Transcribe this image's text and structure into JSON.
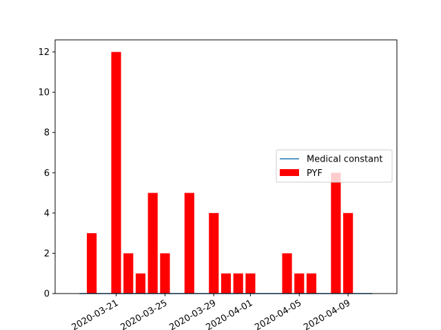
{
  "chart_data": {
    "type": "bar",
    "title": "",
    "xlabel": "",
    "ylabel": "",
    "x_axis_kind": "date",
    "xlim": [
      "2020-03-16",
      "2020-04-13"
    ],
    "ylim": [
      0,
      12.6
    ],
    "y_ticks": [
      0,
      2,
      4,
      6,
      8,
      10,
      12
    ],
    "x_ticks": [
      "2020-03-21",
      "2020-03-25",
      "2020-03-29",
      "2020-04-01",
      "2020-04-05",
      "2020-04-09"
    ],
    "grid": false,
    "legend_position": "center-right",
    "series": [
      {
        "name": "PYF",
        "kind": "bar",
        "color": "#ff0000",
        "x": [
          "2020-03-19",
          "2020-03-21",
          "2020-03-22",
          "2020-03-23",
          "2020-03-24",
          "2020-03-25",
          "2020-03-27",
          "2020-03-29",
          "2020-03-30",
          "2020-03-31",
          "2020-04-01",
          "2020-04-04",
          "2020-04-05",
          "2020-04-06",
          "2020-04-08",
          "2020-04-09"
        ],
        "values": [
          3,
          12,
          2,
          1,
          5,
          2,
          5,
          4,
          1,
          1,
          1,
          2,
          1,
          1,
          6,
          4
        ]
      },
      {
        "name": "Medical constant",
        "kind": "line",
        "color": "#1f77b4",
        "x": [
          "2020-03-18",
          "2020-04-11"
        ],
        "values": [
          0,
          0
        ]
      }
    ]
  }
}
